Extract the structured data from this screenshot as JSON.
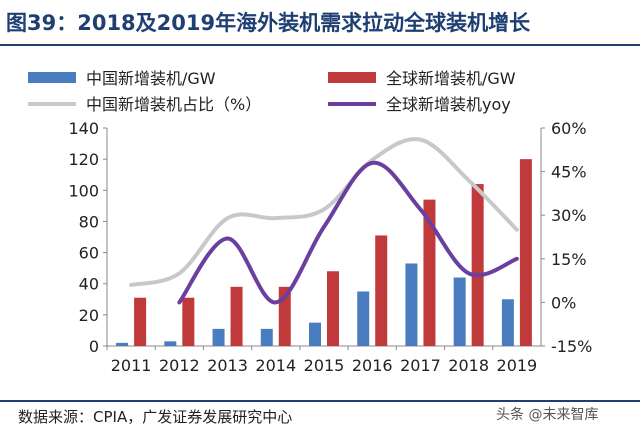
{
  "header": {
    "title": "图39：2018及2019年海外装机需求拉动全球装机增长"
  },
  "footer": {
    "source": "数据来源：CPIA，广发证券发展研究中心",
    "watermark": "头条 @未来智库"
  },
  "colors": {
    "china_bar": "#4a7dbf",
    "global_bar": "#c0393b",
    "share_line": "#c8c8c8",
    "yoy_line": "#6b3fa0",
    "title": "#1f3f73"
  },
  "chart_data": {
    "type": "bar",
    "categories": [
      "2011",
      "2012",
      "2013",
      "2014",
      "2015",
      "2016",
      "2017",
      "2018",
      "2019"
    ],
    "series": [
      {
        "name": "中国新增装机/GW",
        "kind": "bar",
        "axis": "left",
        "values": [
          2,
          3,
          11,
          11,
          15,
          35,
          53,
          44,
          30
        ]
      },
      {
        "name": "全球新增装机/GW",
        "kind": "bar",
        "axis": "left",
        "values": [
          31,
          31,
          38,
          38,
          48,
          71,
          94,
          104,
          120
        ]
      },
      {
        "name": "中国新增装机占比（%）",
        "kind": "line",
        "axis": "right",
        "values": [
          6,
          10,
          29,
          29,
          32,
          49,
          56,
          42,
          25
        ]
      },
      {
        "name": "全球新增装机yoy",
        "kind": "line",
        "axis": "right",
        "values": [
          null,
          0,
          22,
          0,
          26,
          48,
          32,
          10,
          15
        ]
      }
    ],
    "left_axis": {
      "ylim": [
        0,
        140
      ],
      "ticks": [
        "0",
        "20",
        "40",
        "60",
        "80",
        "100",
        "120",
        "140"
      ]
    },
    "right_axis": {
      "ylim": [
        -15,
        60
      ],
      "ticks": [
        "-15%",
        "0%",
        "15%",
        "30%",
        "45%",
        "60%"
      ]
    },
    "legend": "top"
  }
}
